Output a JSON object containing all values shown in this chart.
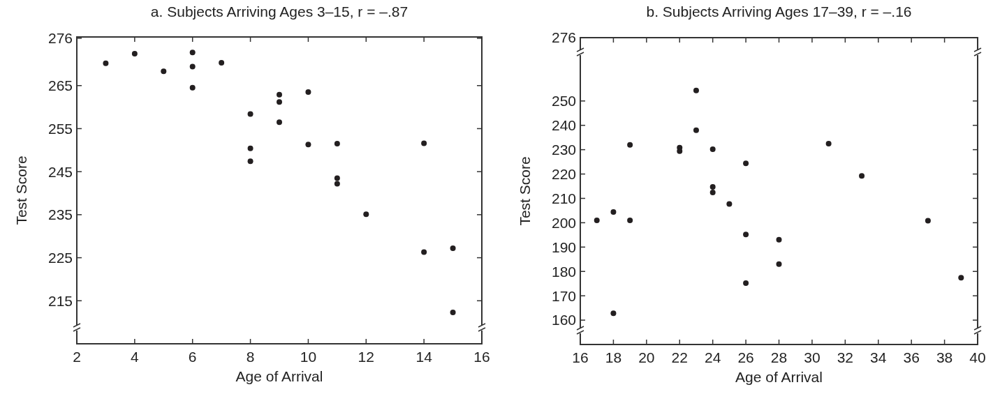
{
  "chart_data": [
    {
      "type": "scatter",
      "title": "a. Subjects Arriving Ages 3–15, r = –.87",
      "xlabel": "Age of Arrival",
      "ylabel": "Test Score",
      "color": "#231f20",
      "marker": "circle",
      "grid": false,
      "x": [
        3,
        4,
        5,
        6,
        6,
        6,
        7,
        8,
        8,
        8,
        9,
        9,
        9,
        10,
        10,
        11,
        11,
        11,
        12,
        14,
        14,
        15,
        15
      ],
      "values": [
        270.2,
        272.4,
        268.3,
        272.7,
        269.4,
        264.5,
        270.3,
        258.4,
        250.4,
        247.4,
        262.9,
        261.2,
        256.5,
        263.5,
        251.3,
        251.5,
        243.5,
        242.2,
        235.1,
        251.6,
        226.3,
        227.2,
        212.3
      ],
      "xlim": [
        2,
        16
      ],
      "ylim": [
        205,
        276.3
      ],
      "xticks": [
        2,
        4,
        6,
        8,
        10,
        12,
        14,
        16
      ],
      "yticks": [
        215,
        225,
        235,
        245,
        255,
        265,
        276
      ]
    },
    {
      "type": "scatter",
      "title": "b. Subjects Arriving Ages 17–39, r = –.16",
      "xlabel": "Age of Arrival",
      "ylabel": "Test Score",
      "color": "#231f20",
      "marker": "circle",
      "grid": false,
      "x": [
        17,
        18,
        18,
        19,
        19,
        22,
        22,
        23,
        23,
        24,
        24,
        24,
        25,
        26,
        26,
        26,
        28,
        28,
        31,
        33,
        37,
        39
      ],
      "values": [
        201.0,
        204.4,
        162.8,
        232.0,
        201.0,
        230.8,
        229.4,
        254.3,
        238.0,
        230.2,
        214.7,
        212.4,
        207.7,
        224.4,
        195.2,
        175.2,
        193.0,
        183.0,
        232.5,
        219.2,
        200.8,
        177.4
      ],
      "xlim": [
        16,
        40
      ],
      "ylim": [
        150,
        276
      ],
      "xticks": [
        16,
        18,
        20,
        22,
        24,
        26,
        28,
        30,
        32,
        34,
        36,
        38,
        40
      ],
      "yticks": [
        160,
        170,
        180,
        190,
        200,
        210,
        220,
        230,
        240,
        250,
        276
      ]
    }
  ]
}
